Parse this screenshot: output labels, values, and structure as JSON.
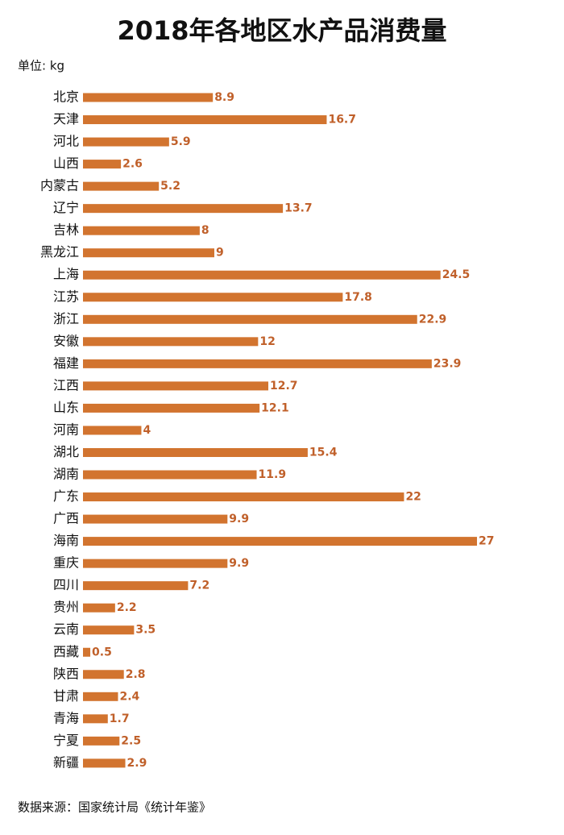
{
  "chart_data": {
    "type": "bar",
    "orientation": "horizontal",
    "title": "2018年各地区水产品消费量",
    "unit_label": "单位: kg",
    "source": "数据来源：国家统计局《统计年鉴》",
    "color": "#d2742f",
    "categories": [
      "北京",
      "天津",
      "河北",
      "山西",
      "内蒙古",
      "辽宁",
      "吉林",
      "黑龙江",
      "上海",
      "江苏",
      "浙江",
      "安徽",
      "福建",
      "江西",
      "山东",
      "河南",
      "湖北",
      "湖南",
      "广东",
      "广西",
      "海南",
      "重庆",
      "四川",
      "贵州",
      "云南",
      "西藏",
      "陕西",
      "甘肃",
      "青海",
      "宁夏",
      "新疆"
    ],
    "values": [
      8.9,
      16.7,
      5.9,
      2.6,
      5.2,
      13.7,
      8,
      9,
      24.5,
      17.8,
      22.9,
      12,
      23.9,
      12.7,
      12.1,
      4,
      15.4,
      11.9,
      22,
      9.9,
      27,
      9.9,
      7.2,
      2.2,
      3.5,
      0.5,
      2.8,
      2.4,
      1.7,
      2.5,
      2.9
    ]
  }
}
